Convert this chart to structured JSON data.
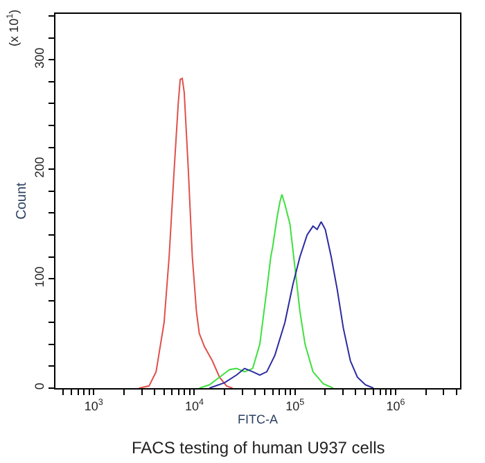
{
  "chart_data": {
    "type": "line",
    "xlabel": "FITC-A",
    "ylabel": "Count",
    "log": "x",
    "marker": "none",
    "line_style": "solid",
    "xlim": [
      417,
      4365000
    ],
    "ylim": [
      0,
      342
    ],
    "xticks": [
      {
        "value": 500,
        "label": null
      },
      {
        "value": 600,
        "label": null
      },
      {
        "value": 700,
        "label": null
      },
      {
        "value": 800,
        "label": null
      },
      {
        "value": 900,
        "label": null
      },
      {
        "value": 1000,
        "label": "10$^{3}$"
      },
      {
        "value": 2000,
        "label": null
      },
      {
        "value": 3000,
        "label": null
      },
      {
        "value": 4000,
        "label": null
      },
      {
        "value": 5000,
        "label": null
      },
      {
        "value": 6000,
        "label": null
      },
      {
        "value": 7000,
        "label": null
      },
      {
        "value": 8000,
        "label": null
      },
      {
        "value": 9000,
        "label": null
      },
      {
        "value": 10000,
        "label": "10$^{4}$"
      },
      {
        "value": 20000,
        "label": null
      },
      {
        "value": 30000,
        "label": null
      },
      {
        "value": 40000,
        "label": null
      },
      {
        "value": 50000,
        "label": null
      },
      {
        "value": 60000,
        "label": null
      },
      {
        "value": 70000,
        "label": null
      },
      {
        "value": 80000,
        "label": null
      },
      {
        "value": 90000,
        "label": null
      },
      {
        "value": 100000,
        "label": "10$^{5}$"
      },
      {
        "value": 200000,
        "label": null
      },
      {
        "value": 300000,
        "label": null
      },
      {
        "value": 400000,
        "label": null
      },
      {
        "value": 500000,
        "label": null
      },
      {
        "value": 600000,
        "label": null
      },
      {
        "value": 700000,
        "label": null
      },
      {
        "value": 800000,
        "label": null
      },
      {
        "value": 900000,
        "label": null
      },
      {
        "value": 1000000,
        "label": "10$^{6}$"
      },
      {
        "value": 2000000,
        "label": null
      },
      {
        "value": 3000000,
        "label": null
      },
      {
        "value": 4000000,
        "label": null
      }
    ],
    "yticks": [
      0,
      {
        "value": 20,
        "label": null
      },
      {
        "value": 40,
        "label": null
      },
      {
        "value": 60,
        "label": null
      },
      {
        "value": 80,
        "label": null
      },
      100,
      {
        "value": 120,
        "label": null
      },
      {
        "value": 140,
        "label": null
      },
      {
        "value": 160,
        "label": null
      },
      {
        "value": 180,
        "label": null
      },
      200,
      {
        "value": 220,
        "label": null
      },
      {
        "value": 240,
        "label": null
      },
      {
        "value": 260,
        "label": null
      },
      {
        "value": 280,
        "label": null
      },
      300,
      {
        "value": 320,
        "label": null
      },
      {
        "value": 340,
        "label": null
      }
    ],
    "annotations": [
      "(x 10$^{1}$)",
      "FACS testing of human U937 cells"
    ],
    "series": [
      {
        "color": "#e0504a",
        "x": [
          2820,
          3550,
          4170,
          5010,
          5620,
          6310,
          6920,
          7240,
          7590,
          7940,
          8710,
          9550,
          10500,
          11200,
          12600,
          15100,
          17800,
          20900,
          24000
        ],
        "values": [
          0,
          2,
          15,
          60,
          120,
          200,
          260,
          282,
          283,
          270,
          200,
          120,
          70,
          50,
          38,
          25,
          10,
          2,
          0
        ]
      },
      {
        "color": "#3ee03e",
        "x": [
          11200,
          14100,
          17800,
          22400,
          26300,
          31600,
          38000,
          44700,
          52500,
          57500,
          60300,
          66100,
          70800,
          74100,
          79400,
          89100,
          100000,
          112000,
          126000,
          151000,
          191000,
          240000
        ],
        "values": [
          0,
          3,
          10,
          17,
          18,
          15,
          18,
          40,
          90,
          120,
          130,
          155,
          170,
          177,
          168,
          150,
          110,
          70,
          40,
          15,
          4,
          0
        ]
      },
      {
        "color": "#2a2aa0",
        "x": [
          14100,
          20000,
          26300,
          31600,
          38000,
          44700,
          52500,
          63100,
          79400,
          95500,
          112000,
          132000,
          151000,
          166000,
          182000,
          200000,
          229000,
          263000,
          302000,
          355000,
          417000,
          501000,
          603000
        ],
        "values": [
          0,
          5,
          12,
          18,
          15,
          12,
          15,
          30,
          60,
          95,
          120,
          140,
          148,
          145,
          152,
          145,
          120,
          90,
          55,
          25,
          10,
          3,
          0
        ]
      }
    ]
  }
}
